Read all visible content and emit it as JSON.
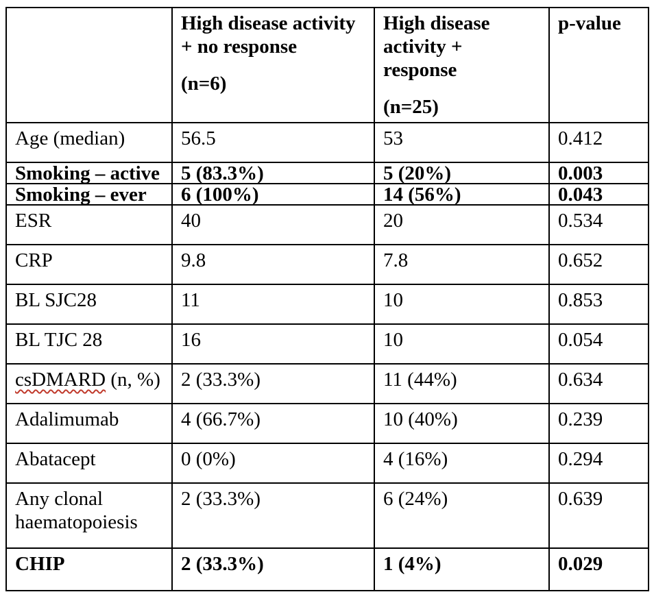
{
  "table": {
    "header": {
      "row_label": "",
      "col_no_response": {
        "title": "High disease activity\n+ no response",
        "n": "(n=6)"
      },
      "col_response": {
        "title": "High disease\nactivity + response",
        "n": "(n=25)"
      },
      "col_p": {
        "title": "p-value",
        "n": ""
      }
    },
    "rows": [
      {
        "label": "Age (median)",
        "no_response": "56.5",
        "response": "53",
        "p_value": "0.412",
        "emphasis": false
      },
      {
        "label": "Smoking – active",
        "no_response": "5 (83.3%)",
        "response": "5 (20%)",
        "p_value": "0.003",
        "emphasis": true
      },
      {
        "label": "Smoking – ever",
        "no_response": "6 (100%)",
        "response": "14 (56%)",
        "p_value": "0.043",
        "emphasis": true
      },
      {
        "label": "ESR",
        "no_response": "40",
        "response": "20",
        "p_value": "0.534",
        "emphasis": false
      },
      {
        "label": "CRP",
        "no_response": "9.8",
        "response": "7.8",
        "p_value": "0.652",
        "emphasis": false
      },
      {
        "label": "BL SJC28",
        "no_response": "11",
        "response": "10",
        "p_value": "0.853",
        "emphasis": false
      },
      {
        "label": "BL TJC 28",
        "no_response": "16",
        "response": "10",
        "p_value": "0.054",
        "emphasis": false
      },
      {
        "label": "csDMARD (n, %)",
        "misspelled_word": "csDMARD",
        "no_response": "2 (33.3%)",
        "response": "11 (44%)",
        "p_value": "0.634",
        "emphasis": false
      },
      {
        "label": "Adalimumab",
        "no_response": "4 (66.7%)",
        "response": "10 (40%)",
        "p_value": "0.239",
        "emphasis": false
      },
      {
        "label": "Abatacept",
        "no_response": "0 (0%)",
        "response": "4 (16%)",
        "p_value": "0.294",
        "emphasis": false
      },
      {
        "label": "Any clonal\nhaematopoiesis",
        "no_response": "2 (33.3%)",
        "response": "6 (24%)",
        "p_value": "0.639",
        "emphasis": false
      },
      {
        "label": "CHIP",
        "no_response": "2 (33.3%)",
        "response": "1 (4%)",
        "p_value": "0.029",
        "emphasis": true
      }
    ],
    "colors": {
      "text": "#000000",
      "border": "#000000",
      "spellcheck_underline": "#c0392b"
    }
  }
}
